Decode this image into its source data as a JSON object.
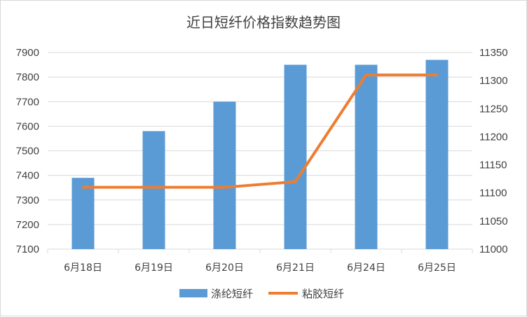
{
  "chart_data": {
    "type": "bar",
    "title": "近日短纤价格指数趋势图",
    "categories": [
      "6月18日",
      "6月19日",
      "6月20日",
      "6月21日",
      "6月24日",
      "6月25日"
    ],
    "series": [
      {
        "name": "涤纶短纤",
        "type": "bar",
        "axis": "left",
        "color": "#5b9bd5",
        "values": [
          7390,
          7580,
          7700,
          7850,
          7850,
          7870
        ]
      },
      {
        "name": "粘胶短纤",
        "type": "line",
        "axis": "right",
        "color": "#ed7d31",
        "values": [
          11110,
          11110,
          11110,
          11120,
          11310,
          11310
        ]
      }
    ],
    "y_left": {
      "min": 7100,
      "max": 7900,
      "step": 100,
      "ticks": [
        "7100",
        "7200",
        "7300",
        "7400",
        "7500",
        "7600",
        "7700",
        "7800",
        "7900"
      ]
    },
    "y_right": {
      "min": 11000,
      "max": 11350,
      "step": 50,
      "ticks": [
        "11000",
        "11050",
        "11100",
        "11150",
        "11200",
        "11250",
        "11300",
        "11350"
      ]
    },
    "grid": true,
    "legend": "bottom"
  }
}
